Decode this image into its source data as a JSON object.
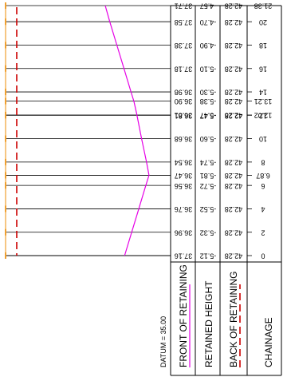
{
  "datum": "DATUM = 35.00",
  "legend": {
    "front": "FRONT OF RETAINING",
    "height": "RETAINED HEIGHT",
    "back": "BACK OF RETAINING",
    "chainage": "CHAINAGE"
  },
  "colors": {
    "front_line": "#e600e6",
    "back_line": "#cc0000",
    "marker": "#f0a030",
    "grid": "#000000"
  },
  "stations": [
    {
      "chainage": "21.38",
      "back": "42.28",
      "height": "-4.57",
      "front": "37.71"
    },
    {
      "chainage": "20",
      "back": "42.28",
      "height": "-4.70",
      "front": "37.58"
    },
    {
      "chainage": "18",
      "back": "42.28",
      "height": "-4.90",
      "front": "37.38"
    },
    {
      "chainage": "16",
      "back": "42.28",
      "height": "-5.10",
      "front": "37.18"
    },
    {
      "chainage": "14",
      "back": "42.28",
      "height": "-5.30",
      "front": "36.98"
    },
    {
      "chainage": "13.21",
      "back": "42.28",
      "height": "-5.38",
      "front": "36.90"
    },
    {
      "chainage": "12.02",
      "back": "42.28",
      "height": "-5.47",
      "front": "36.81"
    },
    {
      "chainage": "12",
      "back": "42.28",
      "height": "-5.47",
      "front": "36.81"
    },
    {
      "chainage": "10",
      "back": "42.28",
      "height": "-5.60",
      "front": "36.68"
    },
    {
      "chainage": "8",
      "back": "42.28",
      "height": "-5.74",
      "front": "36.54"
    },
    {
      "chainage": "6.87",
      "back": "42.28",
      "height": "-5.81",
      "front": "36.47"
    },
    {
      "chainage": "6",
      "back": "42.28",
      "height": "-5.72",
      "front": "36.56"
    },
    {
      "chainage": "4",
      "back": "42.28",
      "height": "-5.52",
      "front": "36.76"
    },
    {
      "chainage": "2",
      "back": "42.28",
      "height": "-5.32",
      "front": "36.96"
    },
    {
      "chainage": "0",
      "back": "42.28",
      "height": "-5.12",
      "front": "37.16"
    }
  ]
}
